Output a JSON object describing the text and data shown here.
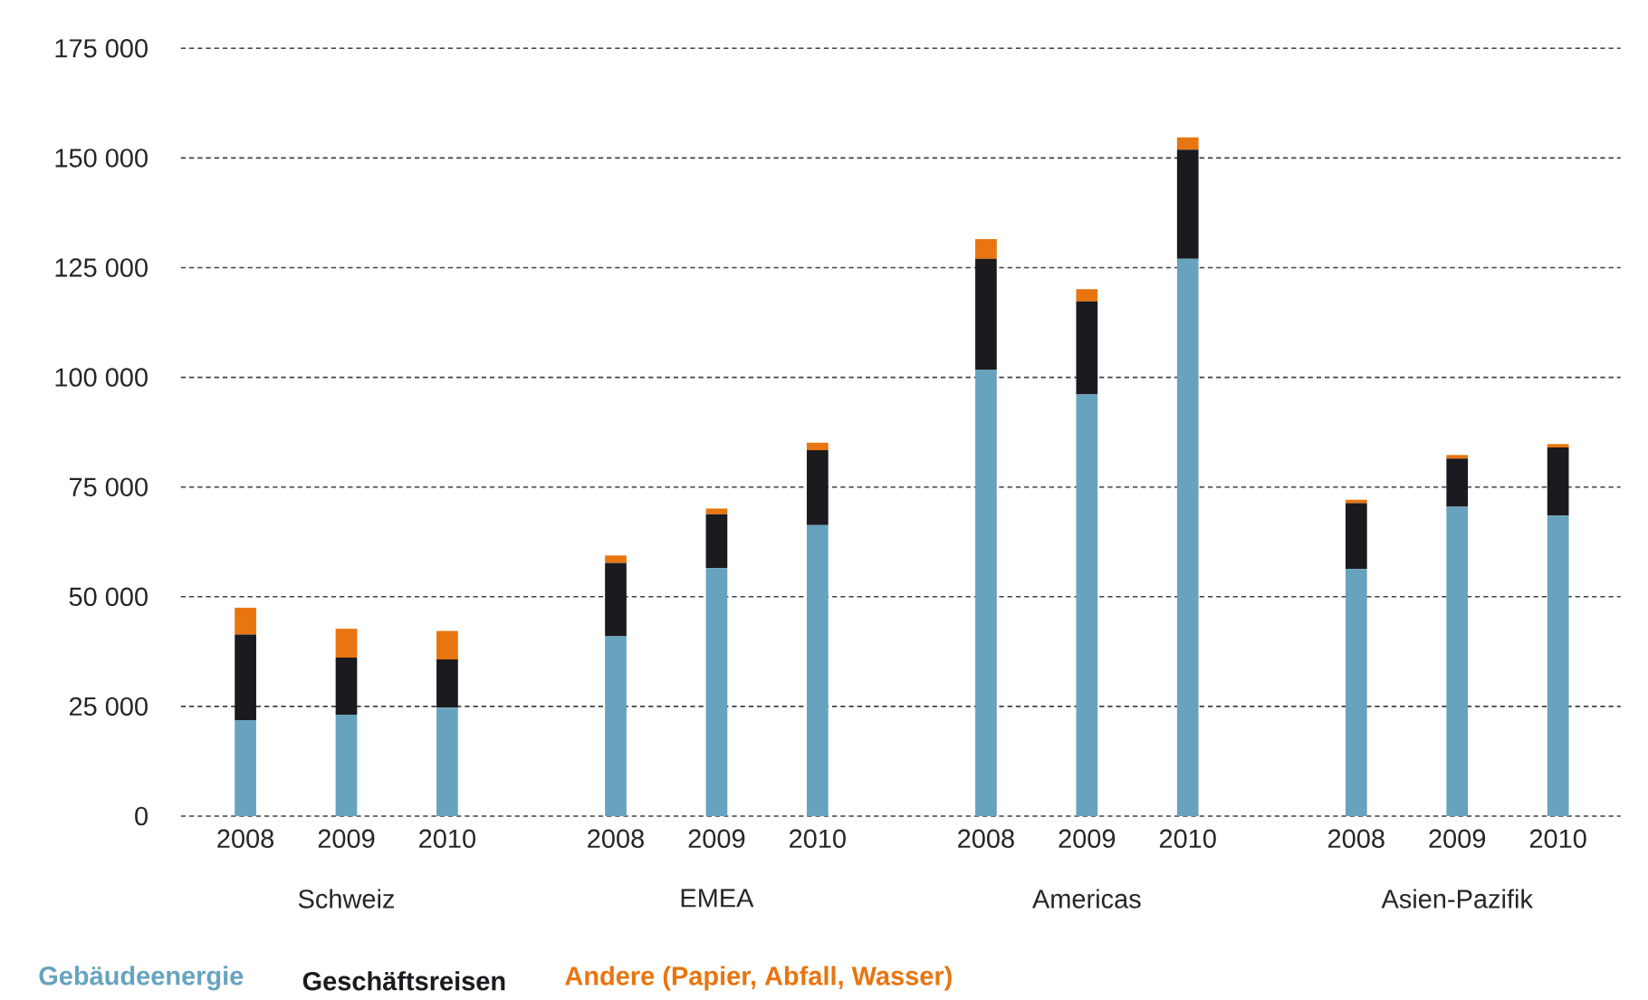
{
  "chart_data": {
    "type": "bar",
    "stacked": true,
    "categories": [
      "2008",
      "2009",
      "2010",
      "2008",
      "2009",
      "2010",
      "2008",
      "2009",
      "2010",
      "2008",
      "2009",
      "2010"
    ],
    "annotations": [
      "Schweiz",
      "EMEA",
      "Americas",
      "Asien-Pazifik"
    ],
    "series": [
      {
        "name": "Gebäudeenergie",
        "color": "#67a3bf",
        "values": [
          21900,
          23100,
          24700,
          41000,
          56500,
          66300,
          101800,
          96100,
          127000,
          56300,
          70500,
          68500
        ]
      },
      {
        "name": "Geschäftsreisen",
        "color": "#1b1a1e",
        "values": [
          19500,
          13000,
          11000,
          16700,
          12300,
          17100,
          25200,
          21200,
          24900,
          15000,
          11000,
          15500
        ]
      },
      {
        "name": "Andere (Papier, Abfall, Wasser)",
        "color": "#e8750f",
        "values": [
          6100,
          6600,
          6500,
          1700,
          1300,
          1700,
          4500,
          2800,
          2800,
          800,
          800,
          800
        ]
      }
    ],
    "ylim": [
      0,
      175000
    ],
    "yticks": [
      0,
      {
        "value": 25000,
        "label": "25 000"
      },
      {
        "value": 50000,
        "label": "50 000"
      },
      {
        "value": 75000,
        "label": "75 000"
      },
      {
        "value": 100000,
        "label": "100 000"
      },
      {
        "value": 125000,
        "label": "125 000"
      },
      {
        "value": 150000,
        "label": "150 000"
      },
      {
        "value": 175000,
        "label": "175 000"
      }
    ],
    "grid": "y",
    "legend": "bottom left"
  }
}
